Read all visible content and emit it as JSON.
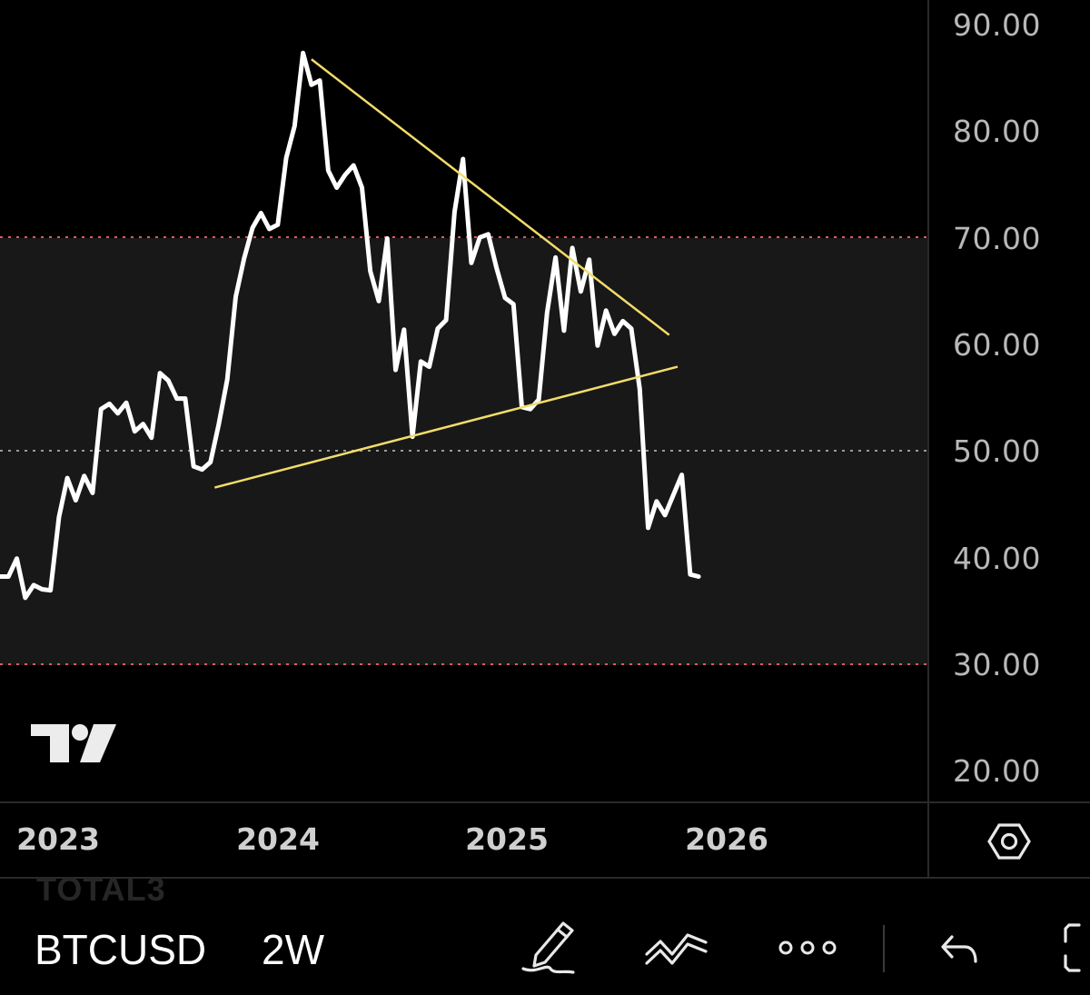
{
  "colors": {
    "background": "#000000",
    "band_fill": "#181818",
    "price_line": "#ffffff",
    "trendline": "#f2dc6a",
    "red_dotted": "#e05a5a",
    "grey_dotted": "#9a9a9a",
    "axis_text": "#b8b8b8"
  },
  "chart_data": {
    "type": "line",
    "title": "",
    "xlabel": "",
    "ylabel": "",
    "ylim": [
      16.9,
      92.6
    ],
    "xlim": [
      "2022-08-27",
      "2026-11-18"
    ],
    "y_ticks": [
      "90.00",
      "80.00",
      "70.00",
      "60.00",
      "50.00",
      "40.00",
      "30.00",
      "20.00"
    ],
    "x_ticks": [
      {
        "label": "2023",
        "date": "2023-01-01"
      },
      {
        "label": "2024",
        "date": "2024-01-01"
      },
      {
        "label": "2025",
        "date": "2025-01-01"
      },
      {
        "label": "2026",
        "date": "2026-01-01"
      }
    ],
    "grid": false,
    "shaded_band": [
      30,
      70
    ],
    "reference_lines": [
      {
        "y": 70,
        "style": "red-dotted"
      },
      {
        "y": 50,
        "style": "grey-dotted"
      },
      {
        "y": 30,
        "style": "red-dotted"
      }
    ],
    "series": [
      {
        "points": [
          [
            "2022-08-27",
            38.2
          ],
          [
            "2022-09-10",
            38.2
          ],
          [
            "2022-09-24",
            39.9
          ],
          [
            "2022-10-08",
            36.2
          ],
          [
            "2022-10-22",
            37.4
          ],
          [
            "2022-11-05",
            37.0
          ],
          [
            "2022-11-19",
            36.9
          ],
          [
            "2022-12-03",
            43.8
          ],
          [
            "2022-12-17",
            47.5
          ],
          [
            "2022-12-31",
            45.4
          ],
          [
            "2023-01-14",
            47.7
          ],
          [
            "2023-01-28",
            46.1
          ],
          [
            "2023-02-11",
            54.0
          ],
          [
            "2023-02-25",
            54.5
          ],
          [
            "2023-03-11",
            53.6
          ],
          [
            "2023-03-25",
            54.6
          ],
          [
            "2023-04-08",
            51.9
          ],
          [
            "2023-04-22",
            52.6
          ],
          [
            "2023-05-06",
            51.3
          ],
          [
            "2023-05-20",
            57.4
          ],
          [
            "2023-06-03",
            56.7
          ],
          [
            "2023-06-17",
            55.0
          ],
          [
            "2023-07-01",
            55.0
          ],
          [
            "2023-07-15",
            48.6
          ],
          [
            "2023-07-29",
            48.3
          ],
          [
            "2023-08-12",
            49.0
          ],
          [
            "2023-08-26",
            52.6
          ],
          [
            "2023-09-09",
            56.8
          ],
          [
            "2023-09-23",
            64.6
          ],
          [
            "2023-10-07",
            68.2
          ],
          [
            "2023-10-21",
            71.1
          ],
          [
            "2023-11-04",
            72.5
          ],
          [
            "2023-11-18",
            71.0
          ],
          [
            "2023-12-02",
            71.4
          ],
          [
            "2023-12-16",
            77.7
          ],
          [
            "2023-12-30",
            80.7
          ],
          [
            "2024-01-13",
            87.6
          ],
          [
            "2024-01-27",
            84.6
          ],
          [
            "2024-02-10",
            85.0
          ],
          [
            "2024-02-24",
            76.5
          ],
          [
            "2024-03-09",
            74.9
          ],
          [
            "2024-03-23",
            76.1
          ],
          [
            "2024-04-06",
            77.0
          ],
          [
            "2024-04-20",
            74.9
          ],
          [
            "2024-05-04",
            67.0
          ],
          [
            "2024-05-18",
            64.2
          ],
          [
            "2024-06-01",
            70.1
          ],
          [
            "2024-06-15",
            57.7
          ],
          [
            "2024-06-29",
            61.5
          ],
          [
            "2024-07-13",
            51.4
          ],
          [
            "2024-07-27",
            58.5
          ],
          [
            "2024-08-10",
            58.0
          ],
          [
            "2024-08-24",
            61.6
          ],
          [
            "2024-09-07",
            62.4
          ],
          [
            "2024-09-21",
            72.6
          ],
          [
            "2024-10-05",
            77.6
          ],
          [
            "2024-10-19",
            67.8
          ],
          [
            "2024-11-02",
            70.2
          ],
          [
            "2024-11-16",
            70.5
          ],
          [
            "2024-11-30",
            67.3
          ],
          [
            "2024-12-14",
            64.5
          ],
          [
            "2024-12-28",
            63.9
          ],
          [
            "2025-01-11",
            54.2
          ],
          [
            "2025-01-25",
            54.0
          ],
          [
            "2025-02-08",
            54.9
          ],
          [
            "2025-02-22",
            63.1
          ],
          [
            "2025-03-08",
            68.3
          ],
          [
            "2025-03-22",
            61.4
          ],
          [
            "2025-04-05",
            69.2
          ],
          [
            "2025-04-19",
            65.1
          ],
          [
            "2025-05-03",
            68.1
          ],
          [
            "2025-05-17",
            60.0
          ],
          [
            "2025-05-31",
            63.3
          ],
          [
            "2025-06-14",
            61.1
          ],
          [
            "2025-06-28",
            62.3
          ],
          [
            "2025-07-12",
            61.6
          ],
          [
            "2025-07-26",
            55.9
          ],
          [
            "2025-08-09",
            42.8
          ],
          [
            "2025-08-23",
            45.3
          ],
          [
            "2025-09-06",
            44.0
          ],
          [
            "2025-09-20",
            45.9
          ],
          [
            "2025-10-04",
            47.8
          ],
          [
            "2025-10-18",
            38.4
          ],
          [
            "2025-11-01",
            38.2
          ]
        ]
      }
    ],
    "trendlines": [
      {
        "from": [
          "2024-01-27",
          87.0
        ],
        "to": [
          "2025-09-13",
          61.0
        ]
      },
      {
        "from": [
          "2023-08-19",
          46.6
        ],
        "to": [
          "2025-09-27",
          58.0
        ]
      }
    ]
  },
  "watermark": {
    "icon": "tradingview-logo-icon"
  },
  "bottom_bar": {
    "ghost_label": "TOTAL3",
    "symbol": "BTCUSD",
    "interval": "2W",
    "icons": [
      "draw-pen-icon",
      "indicators-icon",
      "more-dots-icon",
      "undo-icon",
      "fullscreen-icon"
    ]
  },
  "settings_icon": "settings-hexagon-icon"
}
